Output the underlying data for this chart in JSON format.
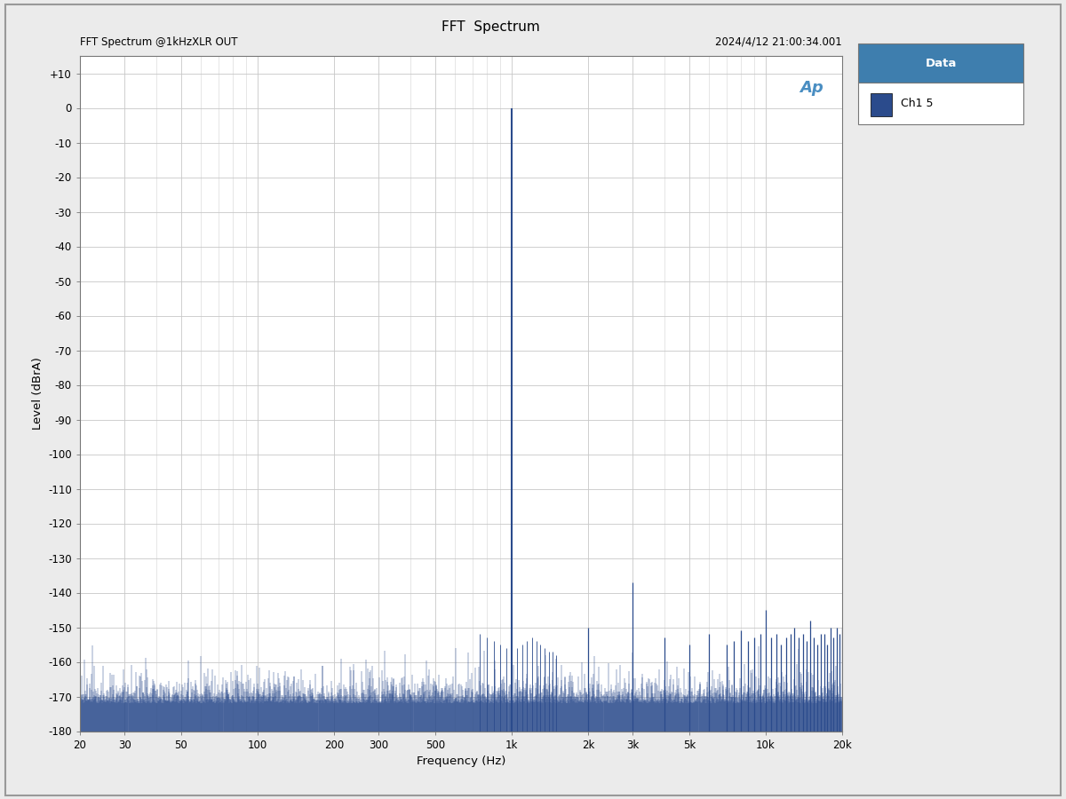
{
  "title": "FFT  Spectrum",
  "subtitle_left": "FFT Spectrum @1kHzXLR OUT",
  "subtitle_right": "2024/4/12 21:00:34.001",
  "xlabel": "Frequency (Hz)",
  "ylabel": "Level (dBrA)",
  "ylim": [
    -180,
    15
  ],
  "yticks": [
    10,
    0,
    -10,
    -20,
    -30,
    -40,
    -50,
    -60,
    -70,
    -80,
    -90,
    -100,
    -110,
    -120,
    -130,
    -140,
    -150,
    -160,
    -170,
    -180
  ],
  "xfreq_min": 20,
  "xfreq_max": 20000,
  "line_color": "#2B4B8C",
  "bg_color": "#FFFFFF",
  "outer_bg": "#EBEBEB",
  "grid_color": "#C8C8C8",
  "legend_header_color": "#3E7EAE",
  "legend_header_text": "Data",
  "legend_ch_color": "#2B4B8C",
  "legend_ch_label": "Ch1 5",
  "ap_logo_color": "#4A8EC2",
  "noise_floor": -172,
  "noise_floor_top": -165,
  "fundamental_freq": 1000,
  "fundamental_level": 0,
  "harmonics": [
    {
      "freq": 2000,
      "level": -150
    },
    {
      "freq": 3000,
      "level": -137
    },
    {
      "freq": 4000,
      "level": -153
    },
    {
      "freq": 5000,
      "level": -155
    },
    {
      "freq": 6000,
      "level": -152
    },
    {
      "freq": 7000,
      "level": -155
    },
    {
      "freq": 7500,
      "level": -154
    },
    {
      "freq": 8000,
      "level": -151
    },
    {
      "freq": 8500,
      "level": -154
    },
    {
      "freq": 9000,
      "level": -153
    },
    {
      "freq": 9500,
      "level": -152
    },
    {
      "freq": 10000,
      "level": -145
    },
    {
      "freq": 10500,
      "level": -153
    },
    {
      "freq": 11000,
      "level": -152
    },
    {
      "freq": 11500,
      "level": -155
    },
    {
      "freq": 12000,
      "level": -153
    },
    {
      "freq": 12500,
      "level": -152
    },
    {
      "freq": 13000,
      "level": -150
    },
    {
      "freq": 13500,
      "level": -153
    },
    {
      "freq": 14000,
      "level": -152
    },
    {
      "freq": 14500,
      "level": -154
    },
    {
      "freq": 15000,
      "level": -148
    },
    {
      "freq": 15500,
      "level": -153
    },
    {
      "freq": 16000,
      "level": -155
    },
    {
      "freq": 16500,
      "level": -152
    },
    {
      "freq": 17000,
      "level": -152
    },
    {
      "freq": 17500,
      "level": -155
    },
    {
      "freq": 18000,
      "level": -150
    },
    {
      "freq": 18500,
      "level": -153
    },
    {
      "freq": 19000,
      "level": -150
    },
    {
      "freq": 19500,
      "level": -152
    },
    {
      "freq": 20000,
      "level": -150
    }
  ],
  "near_1k": [
    {
      "freq": 750,
      "level": -152
    },
    {
      "freq": 800,
      "level": -153
    },
    {
      "freq": 850,
      "level": -154
    },
    {
      "freq": 900,
      "level": -155
    },
    {
      "freq": 950,
      "level": -156
    },
    {
      "freq": 1050,
      "level": -156
    },
    {
      "freq": 1100,
      "level": -155
    },
    {
      "freq": 1150,
      "level": -154
    },
    {
      "freq": 1200,
      "level": -153
    },
    {
      "freq": 1250,
      "level": -154
    },
    {
      "freq": 1300,
      "level": -155
    },
    {
      "freq": 1350,
      "level": -156
    },
    {
      "freq": 1400,
      "level": -157
    },
    {
      "freq": 1450,
      "level": -157
    },
    {
      "freq": 1500,
      "level": -158
    }
  ]
}
